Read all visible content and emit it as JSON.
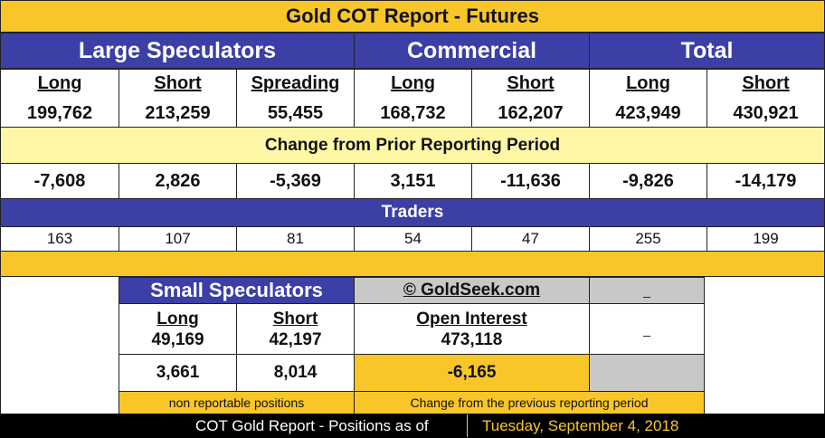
{
  "title": "Gold COT Report - Futures",
  "groups": {
    "large_specs": "Large Speculators",
    "commercial": "Commercial",
    "total": "Total"
  },
  "headers": [
    "Long",
    "Short",
    "Spreading",
    "Long",
    "Short",
    "Long",
    "Short"
  ],
  "positions": [
    "199,762",
    "213,259",
    "55,455",
    "168,732",
    "162,207",
    "423,949",
    "430,921"
  ],
  "change_label": "Change from Prior Reporting Period",
  "changes": [
    "-7,608",
    "2,826",
    "-5,369",
    "3,151",
    "-11,636",
    "-9,826",
    "-14,179"
  ],
  "traders_label": "Traders",
  "traders": [
    "163",
    "107",
    "81",
    "54",
    "47",
    "255",
    "199"
  ],
  "small_specs": {
    "title": "Small Speculators",
    "long_label": "Long",
    "short_label": "Short",
    "long": "49,169",
    "short": "42,197",
    "long_change": "3,661",
    "short_change": "8,014",
    "note": "non reportable positions"
  },
  "copyright": "© GoldSeek.com",
  "open_interest": {
    "label": "Open Interest",
    "value": "473,118",
    "change": "-6,165",
    "note": "Change from the previous reporting period"
  },
  "placeholder_dash": "_",
  "footer": {
    "label": "COT Gold Report - Positions as of",
    "date": "Tuesday, September 4, 2018"
  },
  "colors": {
    "gold": "#f9c62a",
    "light_yellow": "#fdf7a6",
    "blue": "#3b3fa6",
    "grey": "#c8c8c8",
    "black": "#000000"
  }
}
